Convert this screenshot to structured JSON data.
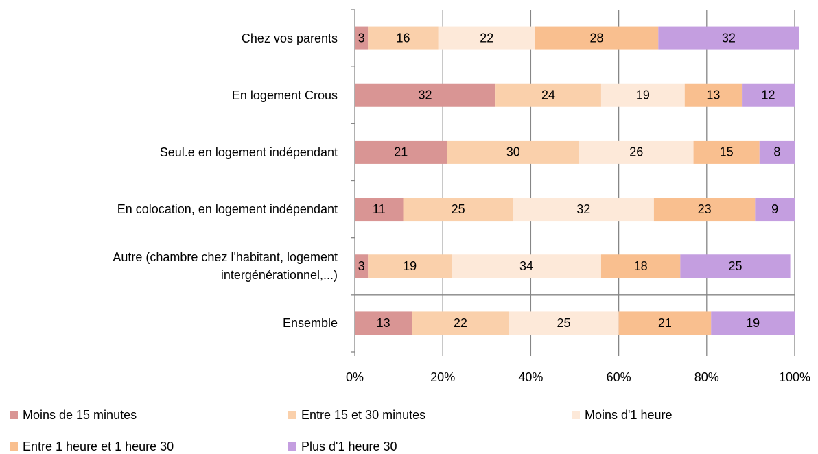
{
  "chart_data": {
    "type": "bar",
    "orientation": "horizontal",
    "stacked": true,
    "categories": [
      "Chez vos parents",
      "En logement Crous",
      "Seul.e en logement indépendant",
      "En colocation, en logement indépendant",
      "Autre (chambre chez l'habitant, logement intergénérationnel,...)",
      "Ensemble"
    ],
    "series": [
      {
        "name": "Moins de 15 minutes",
        "color": "#d99594",
        "values": [
          3,
          32,
          21,
          11,
          3,
          13
        ]
      },
      {
        "name": "Entre 15 et 30 minutes",
        "color": "#fad0ab",
        "values": [
          16,
          24,
          30,
          25,
          19,
          22
        ]
      },
      {
        "name": "Moins d'1 heure",
        "color": "#fde9d9",
        "values": [
          22,
          19,
          26,
          32,
          34,
          25
        ]
      },
      {
        "name": "Entre 1 heure et 1 heure 30",
        "color": "#f9bf8f",
        "values": [
          28,
          13,
          15,
          23,
          18,
          21
        ]
      },
      {
        "name": "Plus d'1 heure 30",
        "color": "#c49ee0",
        "values": [
          32,
          12,
          8,
          9,
          25,
          19
        ]
      }
    ],
    "xlim": [
      0,
      100
    ],
    "xticks": [
      {
        "value": 0,
        "label": "0%"
      },
      {
        "value": 20,
        "label": "20%"
      },
      {
        "value": 40,
        "label": "40%"
      },
      {
        "value": 60,
        "label": "60%"
      },
      {
        "value": 80,
        "label": "80%"
      },
      {
        "value": 100,
        "label": "100%"
      }
    ],
    "grid": true,
    "legend": "bottom"
  }
}
